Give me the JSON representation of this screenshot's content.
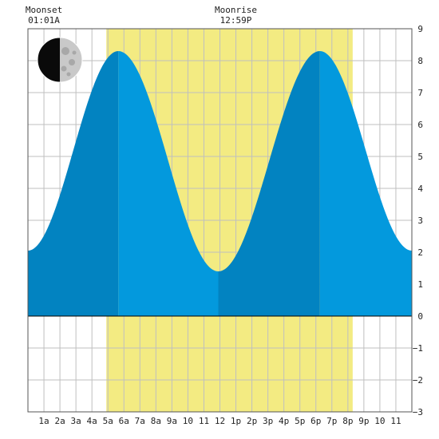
{
  "chart_data": {
    "type": "area",
    "title": "",
    "xlabel": "",
    "ylabel": "",
    "xlim": [
      0,
      24
    ],
    "ylim": [
      -3,
      9
    ],
    "yticks": [
      9,
      8,
      7,
      6,
      5,
      4,
      3,
      2,
      1,
      0,
      -1,
      -2,
      -3
    ],
    "yticklabels": [
      "9",
      "8",
      "7",
      "6",
      "5",
      "4",
      "3",
      "2",
      "1",
      "0",
      "−1",
      "−2",
      "−3"
    ],
    "xticks": [
      1,
      2,
      3,
      4,
      5,
      6,
      7,
      8,
      9,
      10,
      11,
      12,
      13,
      14,
      15,
      16,
      17,
      18,
      19,
      20,
      21,
      22,
      23
    ],
    "xticklabels": [
      "1a",
      "2a",
      "3a",
      "4a",
      "5a",
      "6a",
      "7a",
      "8a",
      "9a",
      "10",
      "11",
      "12",
      "1p",
      "2p",
      "3p",
      "4p",
      "5p",
      "6p",
      "7p",
      "8p",
      "9p",
      "10",
      "11"
    ],
    "grid": true,
    "daylight": {
      "start": 4.9,
      "end": 20.3,
      "color": "#f3eb82"
    },
    "tide_series": {
      "name": "",
      "extrema": [
        {
          "x": 0.0,
          "y": 2.05
        },
        {
          "x": 5.65,
          "y": 8.3
        },
        {
          "x": 11.9,
          "y": 1.4
        },
        {
          "x": 18.25,
          "y": 8.3
        },
        {
          "x": 24.0,
          "y": 2.05
        }
      ]
    },
    "shading_bands": [
      {
        "x0": 0.0,
        "x1": 5.65,
        "shade": "dark"
      },
      {
        "x0": 5.65,
        "x1": 11.9,
        "shade": "light"
      },
      {
        "x0": 11.9,
        "x1": 18.25,
        "shade": "dark"
      },
      {
        "x0": 18.25,
        "x1": 24.0,
        "shade": "light"
      }
    ],
    "colors": {
      "dark": "#0283c1",
      "light": "#0399dd",
      "grid": "#bfbfbf",
      "frame": "#555555"
    },
    "moon_events": [
      {
        "label": "Moonset",
        "time": "01:01A",
        "x": 1.0
      },
      {
        "label": "Moonrise",
        "time": "12:59P",
        "x": 13.0
      }
    ],
    "moon_phase": {
      "icon": "moon-phase-icon",
      "illuminated_side": "right",
      "fraction": 0.5
    }
  }
}
